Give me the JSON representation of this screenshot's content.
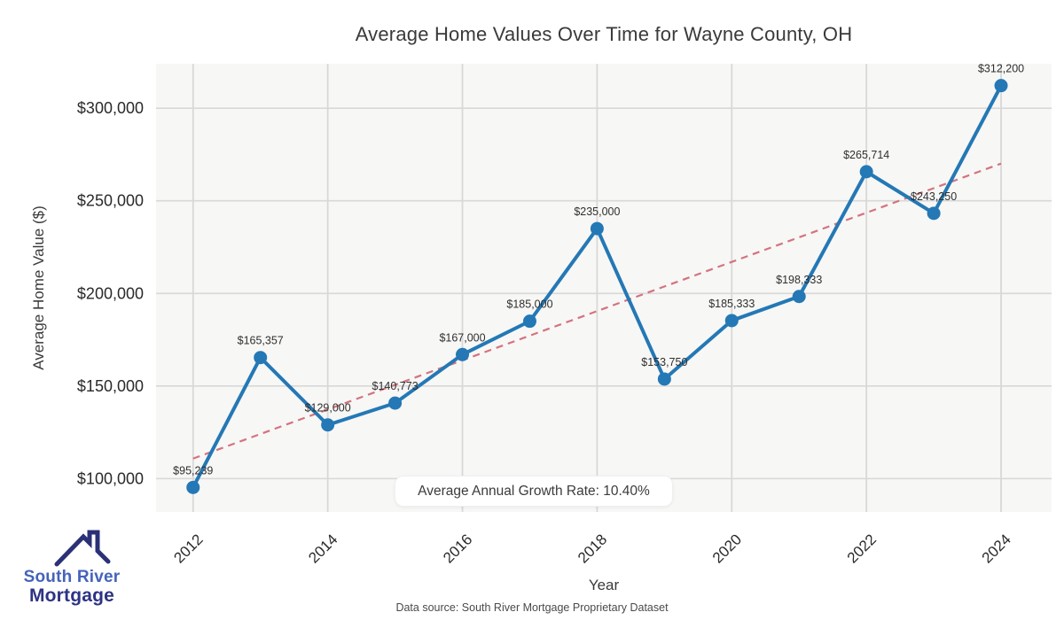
{
  "chart_data": {
    "type": "line",
    "title": "Average Home Values Over Time for Wayne County, OH",
    "xlabel": "Year",
    "ylabel": "Average Home Value ($)",
    "x": [
      2012,
      2013,
      2014,
      2015,
      2016,
      2017,
      2018,
      2019,
      2020,
      2021,
      2022,
      2023,
      2024
    ],
    "values": [
      95239,
      165357,
      129000,
      140773,
      167000,
      185000,
      235000,
      153750,
      185333,
      198333,
      265714,
      243250,
      312200
    ],
    "point_labels": [
      "$95,239",
      "$165,357",
      "$129,000",
      "$140,773",
      "$167,000",
      "$185,000",
      "$235,000",
      "$153,750",
      "$185,333",
      "$198,333",
      "$265,714",
      "$243,250",
      "$312,200"
    ],
    "xticks": [
      2012,
      2014,
      2016,
      2018,
      2020,
      2022,
      2024
    ],
    "yticks": [
      100000,
      150000,
      200000,
      250000,
      300000
    ],
    "ytick_labels": [
      "$100,000",
      "$150,000",
      "$200,000",
      "$250,000",
      "$300,000"
    ],
    "xlim": [
      2011.45,
      2024.75
    ],
    "ylim": [
      82000,
      324000
    ],
    "grid": true,
    "legend": "none",
    "trendline": {
      "style": "dashed",
      "kind": "linear-regression"
    },
    "annotation": "Average Annual Growth Rate: 10.40%",
    "colors": {
      "line": "#2478b5",
      "marker": "#2478b5",
      "trend": "#d4737e",
      "plot_bg": "#f7f7f6",
      "grid": "#d8d8d8",
      "tick_text": "#2a2a2a",
      "point_label_text": "#2f2f2f"
    }
  },
  "footer": {
    "source": "Data source: South River Mortgage Proprietary Dataset"
  },
  "logo": {
    "line1": "South River",
    "line2": "Mortgage",
    "color1": "#4563b9",
    "color2": "#2d3384",
    "roof_color": "#2b3176"
  }
}
